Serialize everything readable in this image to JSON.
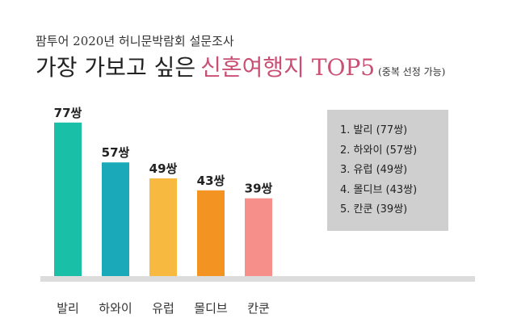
{
  "header": {
    "subtitle": "팜투어 2020년 허니문박람회 설문조사",
    "title_main": "가장 가보고 싶은",
    "title_accent": "신혼여행지 TOP5",
    "title_note": "(중복 선정 가능)"
  },
  "legend": {
    "items": [
      "1. 발리 (77쌍)",
      "2. 하와이 (57쌍)",
      "3. 유럽 (49쌍)",
      "4. 몰디브 (43쌍)",
      "5. 칸쿤 (39쌍)"
    ]
  },
  "chart_data": {
    "type": "bar",
    "title": "가장 가보고 싶은 신혼여행지 TOP5",
    "categories": [
      "발리",
      "하와이",
      "유럽",
      "몰디브",
      "칸쿤"
    ],
    "values": [
      77,
      57,
      49,
      43,
      39
    ],
    "value_labels": [
      "77쌍",
      "57쌍",
      "49쌍",
      "43쌍",
      "39쌍"
    ],
    "unit": "쌍",
    "colors": [
      "#19bfa6",
      "#1aa9b9",
      "#f8b940",
      "#f29322",
      "#f68f8a"
    ],
    "baseline_color": "#dcdcdc",
    "grid": false
  }
}
